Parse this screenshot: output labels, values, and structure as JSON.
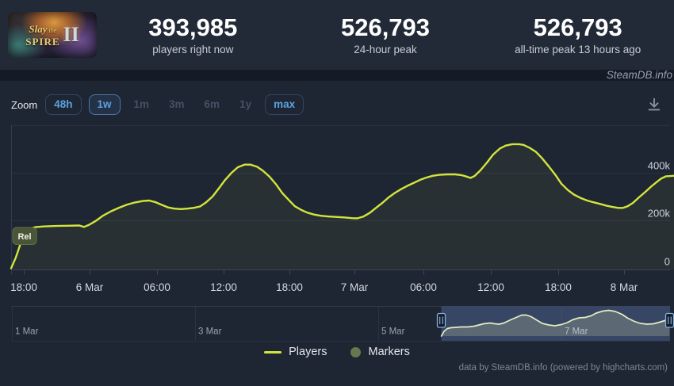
{
  "header": {
    "capsule": {
      "title_script": "Slay",
      "title_the": "the",
      "title_main": "SPIRE",
      "numeral": "II"
    },
    "stats": [
      {
        "value": "393,985",
        "label": "players right now"
      },
      {
        "value": "526,793",
        "label": "24-hour peak"
      },
      {
        "value": "526,793",
        "label": "all-time peak 13 hours ago"
      }
    ]
  },
  "watermark": "SteamDB.info",
  "toolbar": {
    "zoom_label": "Zoom",
    "buttons": [
      {
        "label": "48h",
        "state": "enabled"
      },
      {
        "label": "1w",
        "state": "selected"
      },
      {
        "label": "1m",
        "state": "disabled"
      },
      {
        "label": "3m",
        "state": "disabled"
      },
      {
        "label": "6m",
        "state": "disabled"
      },
      {
        "label": "1y",
        "state": "disabled"
      },
      {
        "label": "max",
        "state": "enabled"
      }
    ]
  },
  "chart_data": {
    "type": "line",
    "release_flag": "Rel",
    "line_color": "#d3e53c",
    "yaxis": {
      "labels": [
        "400k",
        "200k",
        "0"
      ],
      "values": [
        400000,
        200000,
        0
      ],
      "max": 600000,
      "position": "right"
    },
    "xaxis": {
      "labels": [
        "18:00",
        "6 Mar",
        "06:00",
        "12:00",
        "18:00",
        "7 Mar",
        "06:00",
        "12:00",
        "18:00",
        "8 Mar"
      ]
    },
    "series": [
      {
        "name": "Players",
        "points": [
          [
            0.0,
            5000
          ],
          [
            0.007,
            50000
          ],
          [
            0.014,
            107000
          ],
          [
            0.022,
            153000
          ],
          [
            0.026,
            170000
          ],
          [
            0.036,
            178000
          ],
          [
            0.049,
            181000
          ],
          [
            0.067,
            183000
          ],
          [
            0.085,
            184000
          ],
          [
            0.103,
            185000
          ],
          [
            0.11,
            179000
          ],
          [
            0.117,
            187000
          ],
          [
            0.127,
            203000
          ],
          [
            0.139,
            227000
          ],
          [
            0.151,
            245000
          ],
          [
            0.163,
            260000
          ],
          [
            0.175,
            273000
          ],
          [
            0.187,
            282000
          ],
          [
            0.199,
            288000
          ],
          [
            0.208,
            290000
          ],
          [
            0.218,
            283000
          ],
          [
            0.227,
            272000
          ],
          [
            0.237,
            261000
          ],
          [
            0.246,
            256000
          ],
          [
            0.256,
            254000
          ],
          [
            0.266,
            256000
          ],
          [
            0.275,
            259000
          ],
          [
            0.285,
            265000
          ],
          [
            0.294,
            282000
          ],
          [
            0.304,
            307000
          ],
          [
            0.313,
            340000
          ],
          [
            0.323,
            377000
          ],
          [
            0.333,
            408000
          ],
          [
            0.342,
            430000
          ],
          [
            0.352,
            441000
          ],
          [
            0.361,
            441000
          ],
          [
            0.371,
            432000
          ],
          [
            0.38,
            415000
          ],
          [
            0.39,
            390000
          ],
          [
            0.4,
            357000
          ],
          [
            0.409,
            322000
          ],
          [
            0.419,
            292000
          ],
          [
            0.428,
            266000
          ],
          [
            0.438,
            250000
          ],
          [
            0.447,
            239000
          ],
          [
            0.457,
            231000
          ],
          [
            0.467,
            226000
          ],
          [
            0.478,
            223000
          ],
          [
            0.49,
            221000
          ],
          [
            0.502,
            219000
          ],
          [
            0.514,
            216000
          ],
          [
            0.522,
            215000
          ],
          [
            0.531,
            222000
          ],
          [
            0.541,
            238000
          ],
          [
            0.55,
            258000
          ],
          [
            0.56,
            280000
          ],
          [
            0.569,
            302000
          ],
          [
            0.579,
            322000
          ],
          [
            0.589,
            339000
          ],
          [
            0.598,
            352000
          ],
          [
            0.608,
            365000
          ],
          [
            0.617,
            377000
          ],
          [
            0.627,
            387000
          ],
          [
            0.636,
            394000
          ],
          [
            0.646,
            398000
          ],
          [
            0.658,
            400000
          ],
          [
            0.67,
            400000
          ],
          [
            0.679,
            397000
          ],
          [
            0.687,
            391000
          ],
          [
            0.693,
            385000
          ],
          [
            0.699,
            393000
          ],
          [
            0.708,
            417000
          ],
          [
            0.718,
            450000
          ],
          [
            0.727,
            483000
          ],
          [
            0.737,
            508000
          ],
          [
            0.746,
            521000
          ],
          [
            0.756,
            527000
          ],
          [
            0.766,
            527000
          ],
          [
            0.773,
            524000
          ],
          [
            0.782,
            512000
          ],
          [
            0.792,
            494000
          ],
          [
            0.801,
            468000
          ],
          [
            0.811,
            434000
          ],
          [
            0.821,
            398000
          ],
          [
            0.83,
            361000
          ],
          [
            0.84,
            334000
          ],
          [
            0.849,
            315000
          ],
          [
            0.859,
            301000
          ],
          [
            0.869,
            290000
          ],
          [
            0.878,
            283000
          ],
          [
            0.888,
            276000
          ],
          [
            0.897,
            269000
          ],
          [
            0.907,
            263000
          ],
          [
            0.916,
            259000
          ],
          [
            0.923,
            259000
          ],
          [
            0.93,
            266000
          ],
          [
            0.938,
            280000
          ],
          [
            0.947,
            303000
          ],
          [
            0.957,
            327000
          ],
          [
            0.966,
            350000
          ],
          [
            0.974,
            368000
          ],
          [
            0.981,
            383000
          ],
          [
            0.988,
            392000
          ],
          [
            1.0,
            394000
          ]
        ]
      },
      {
        "name": "Markers",
        "points": []
      }
    ]
  },
  "navigator": {
    "labels": [
      "1 Mar",
      "3 Mar",
      "5 Mar",
      "7 Mar"
    ],
    "points": [
      [
        0.653,
        0
      ],
      [
        0.657,
        97000
      ],
      [
        0.662,
        154000
      ],
      [
        0.667,
        170000
      ],
      [
        0.675,
        178000
      ],
      [
        0.683,
        186000
      ],
      [
        0.693,
        186000
      ],
      [
        0.703,
        203000
      ],
      [
        0.71,
        227000
      ],
      [
        0.717,
        251000
      ],
      [
        0.727,
        268000
      ],
      [
        0.734,
        251000
      ],
      [
        0.741,
        243000
      ],
      [
        0.748,
        268000
      ],
      [
        0.758,
        332000
      ],
      [
        0.768,
        389000
      ],
      [
        0.775,
        430000
      ],
      [
        0.782,
        430000
      ],
      [
        0.789,
        397000
      ],
      [
        0.799,
        316000
      ],
      [
        0.806,
        259000
      ],
      [
        0.816,
        227000
      ],
      [
        0.825,
        211000
      ],
      [
        0.835,
        235000
      ],
      [
        0.844,
        276000
      ],
      [
        0.852,
        332000
      ],
      [
        0.862,
        373000
      ],
      [
        0.871,
        381000
      ],
      [
        0.88,
        413000
      ],
      [
        0.888,
        470000
      ],
      [
        0.898,
        511000
      ],
      [
        0.907,
        527000
      ],
      [
        0.917,
        503000
      ],
      [
        0.927,
        446000
      ],
      [
        0.936,
        365000
      ],
      [
        0.946,
        300000
      ],
      [
        0.955,
        259000
      ],
      [
        0.965,
        243000
      ],
      [
        0.975,
        251000
      ],
      [
        0.984,
        284000
      ],
      [
        0.994,
        324000
      ],
      [
        0.999,
        360000
      ]
    ]
  },
  "legend": {
    "items": [
      {
        "label": "Players",
        "swatch": "line",
        "color": "#d3e53c"
      },
      {
        "label": "Markers",
        "swatch": "circle",
        "color": "#69774e"
      }
    ]
  },
  "footer": {
    "credits": "data by SteamDB.info (powered by highcharts.com)"
  }
}
